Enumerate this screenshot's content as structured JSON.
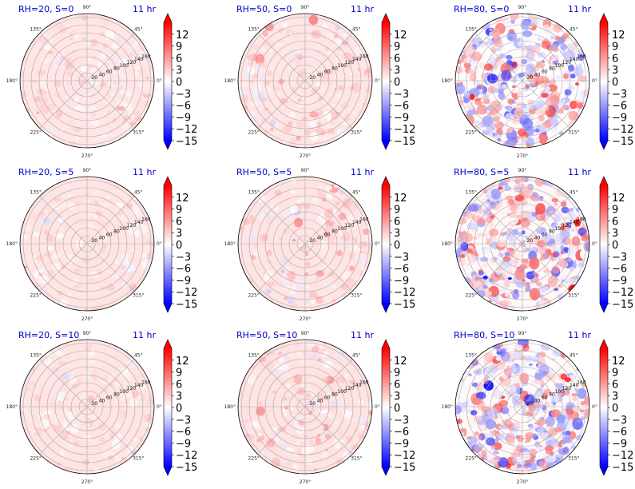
{
  "chart_data": {
    "type": "polar-heatmap",
    "layout": {
      "rows": 3,
      "cols": 3
    },
    "radial_ticks": [
      "20",
      "40",
      "60",
      "80",
      "100",
      "120",
      "140",
      "160"
    ],
    "r_max": 168,
    "angle_ticks": [
      "0°",
      "45°",
      "90°",
      "135°",
      "180°",
      "225°",
      "270°",
      "315°"
    ],
    "colorbar": {
      "cmap": "bwr",
      "vmin": -15,
      "vmax": 15,
      "ticks": [
        "12",
        "9",
        "6",
        "3",
        "0",
        "−3",
        "−6",
        "−9",
        "−12",
        "−15"
      ],
      "extend": "both"
    },
    "colors": {
      "low": "#0000ff",
      "mid": "#ffffff",
      "high": "#ff0000"
    },
    "panels": [
      {
        "title": "RH=20, S=0",
        "time": "11 hr",
        "mean": 1.5,
        "spread": 1.2
      },
      {
        "title": "RH=50, S=0",
        "time": "11 hr",
        "mean": 1.5,
        "spread": 2.0
      },
      {
        "title": "RH=80, S=0",
        "time": "11 hr",
        "mean": 0.2,
        "spread": 5.5
      },
      {
        "title": "RH=20, S=5",
        "time": "11 hr",
        "mean": 1.6,
        "spread": 1.2
      },
      {
        "title": "RH=50, S=5",
        "time": "11 hr",
        "mean": 1.6,
        "spread": 2.0
      },
      {
        "title": "RH=80, S=5",
        "time": "11 hr",
        "mean": 0.5,
        "spread": 6.0
      },
      {
        "title": "RH=20, S=10",
        "time": "11 hr",
        "mean": 1.6,
        "spread": 1.2
      },
      {
        "title": "RH=50, S=10",
        "time": "11 hr",
        "mean": 1.7,
        "spread": 2.0
      },
      {
        "title": "RH=80, S=10",
        "time": "11 hr",
        "mean": 0.3,
        "spread": 6.0
      }
    ]
  }
}
